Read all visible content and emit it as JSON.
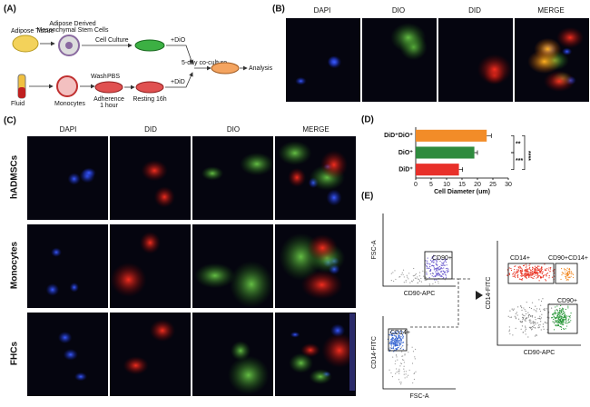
{
  "panel_a": {
    "label": "(A)",
    "adipose": "Adipose Tissue",
    "adsc_1": "Adipose Derived",
    "adsc_2": "Mesenchymal Stem Cells",
    "culture": "Cell Culture",
    "dio": "+DiO",
    "fluid": "Fluid",
    "monocytes": "Monocytes",
    "wash": "Wash",
    "pbs": "PBS",
    "adherence_1": "Adherence",
    "adherence_2": "1 hour",
    "resting": "Resting 16h",
    "did": "+DiD",
    "coculture": "5-day co-culture",
    "analysis": "Analysis"
  },
  "panel_b": {
    "label": "(B)",
    "columns": [
      "DAPI",
      "DIO",
      "DID",
      "MERGE"
    ]
  },
  "panel_c": {
    "label": "(C)",
    "columns": [
      "DAPI",
      "DID",
      "DIO",
      "MERGE"
    ],
    "rows": [
      "hADMSCs",
      "Monocytes",
      "FHCs"
    ]
  },
  "chart_data": {
    "type": "bar",
    "orientation": "horizontal",
    "panel_label": "(D)",
    "categories": [
      "DiD⁺DiO⁺",
      "DiO⁺",
      "DiD⁺"
    ],
    "values": [
      23,
      19,
      14
    ],
    "errors": [
      1.5,
      1,
      1.2
    ],
    "colors": [
      "#f28c28",
      "#2e8b3e",
      "#e8302a"
    ],
    "xlim": [
      0,
      30
    ],
    "xticks": [
      0,
      5,
      10,
      15,
      20,
      25,
      30
    ],
    "xlabel": "Cell Diameter (um)",
    "annotations": [
      "**",
      "***",
      "****"
    ]
  },
  "panel_e": {
    "label": "(E)",
    "plot1": {
      "y": "FSC-A",
      "x": "CD90-APC",
      "gate": "CD90+"
    },
    "plot2": {
      "y": "CD14-FITC",
      "x": "FSC-A",
      "gate": "CD14+"
    },
    "plot3": {
      "y": "CD14-FITC",
      "x": "CD90-APC",
      "gate1": "CD14+",
      "gate2": "CD90+CD14+",
      "gate3": "CD90+"
    }
  }
}
